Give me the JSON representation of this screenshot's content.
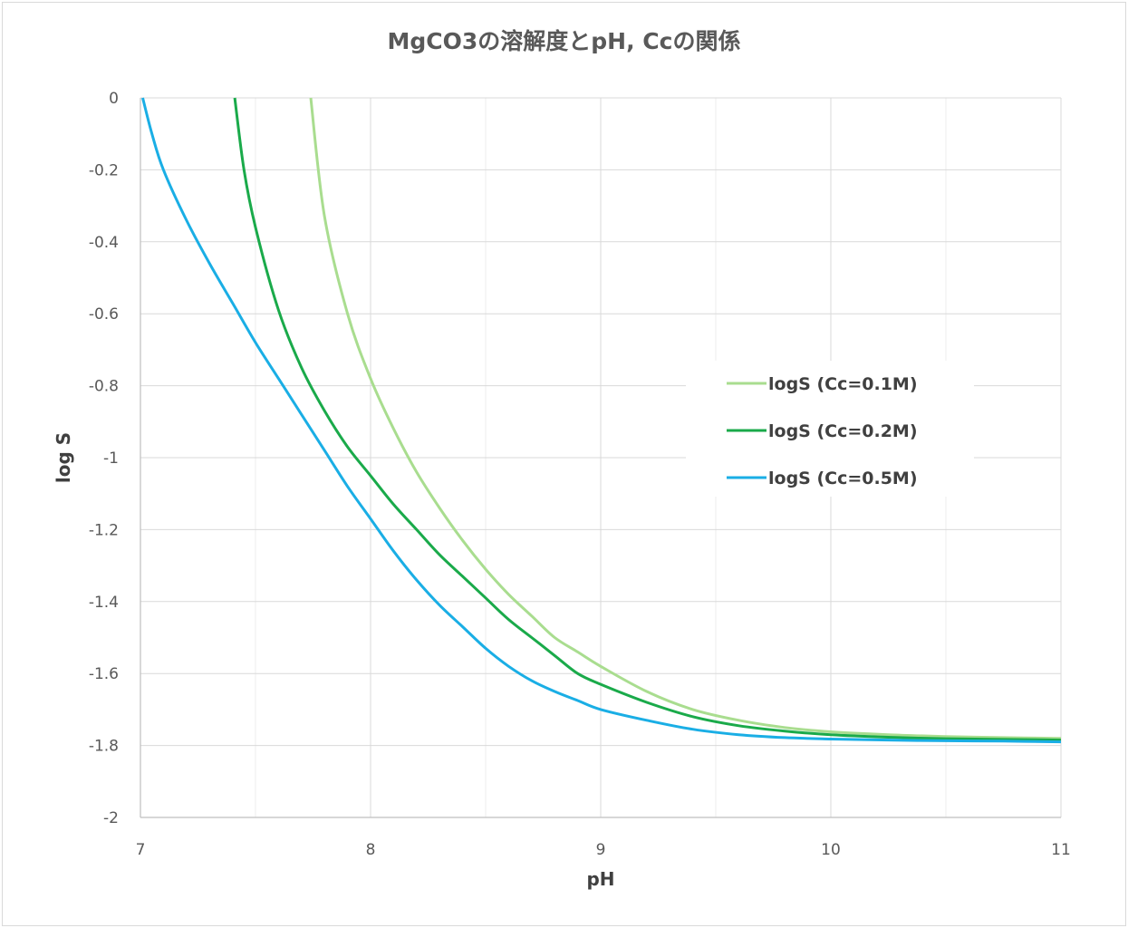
{
  "chart_data": {
    "type": "line",
    "title": "MgCO3の溶解度とpH, Ccの関係",
    "xlabel": "pH",
    "ylabel": "log S",
    "xlim": [
      7,
      11
    ],
    "ylim": [
      -2,
      0
    ],
    "x_ticks": [
      "7",
      "8",
      "9",
      "10",
      "11"
    ],
    "y_ticks": [
      "0",
      "-0.2",
      "-0.4",
      "-0.6",
      "-0.8",
      "-1",
      "-1.2",
      "-1.4",
      "-1.6",
      "-1.8",
      "-2"
    ],
    "grid": true,
    "legend_position": "right",
    "series": [
      {
        "name": "logS (Cc=0.1M)",
        "color": "#a9dd8f",
        "x": [
          7.74,
          7.8,
          7.9,
          8.0,
          8.1,
          8.2,
          8.3,
          8.4,
          8.5,
          8.6,
          8.7,
          8.8,
          8.9,
          9.0,
          9.2,
          9.4,
          9.6,
          9.8,
          10.0,
          10.25,
          10.5,
          10.75,
          11.0
        ],
        "y": [
          0,
          -0.33,
          -0.6,
          -0.78,
          -0.92,
          -1.04,
          -1.14,
          -1.23,
          -1.31,
          -1.38,
          -1.44,
          -1.5,
          -1.54,
          -1.58,
          -1.65,
          -1.7,
          -1.73,
          -1.75,
          -1.762,
          -1.77,
          -1.775,
          -1.778,
          -1.78
        ]
      },
      {
        "name": "logS (Cc=0.2M)",
        "color": "#1aaa4a",
        "x": [
          7.41,
          7.45,
          7.5,
          7.6,
          7.7,
          7.8,
          7.9,
          8.0,
          8.1,
          8.2,
          8.3,
          8.4,
          8.5,
          8.6,
          8.7,
          8.8,
          8.9,
          9.0,
          9.2,
          9.4,
          9.6,
          9.8,
          10.0,
          10.25,
          10.5,
          10.75,
          11.0
        ],
        "y": [
          0,
          -0.2,
          -0.36,
          -0.59,
          -0.75,
          -0.87,
          -0.97,
          -1.05,
          -1.13,
          -1.2,
          -1.27,
          -1.33,
          -1.39,
          -1.45,
          -1.5,
          -1.55,
          -1.6,
          -1.63,
          -1.68,
          -1.72,
          -1.745,
          -1.76,
          -1.77,
          -1.777,
          -1.781,
          -1.783,
          -1.785
        ]
      },
      {
        "name": "logS (Cc=0.5M)",
        "color": "#1aaee5",
        "x": [
          7.01,
          7.05,
          7.1,
          7.2,
          7.3,
          7.4,
          7.5,
          7.6,
          7.7,
          7.8,
          7.9,
          8.0,
          8.1,
          8.2,
          8.3,
          8.4,
          8.5,
          8.6,
          8.7,
          8.8,
          8.9,
          9.0,
          9.2,
          9.4,
          9.6,
          9.8,
          10.0,
          10.25,
          10.5,
          10.75,
          11.0
        ],
        "y": [
          0,
          -0.1,
          -0.2,
          -0.34,
          -0.46,
          -0.57,
          -0.68,
          -0.78,
          -0.88,
          -0.98,
          -1.08,
          -1.17,
          -1.26,
          -1.34,
          -1.41,
          -1.47,
          -1.53,
          -1.58,
          -1.62,
          -1.65,
          -1.675,
          -1.7,
          -1.73,
          -1.755,
          -1.77,
          -1.778,
          -1.782,
          -1.785,
          -1.787,
          -1.788,
          -1.79
        ]
      }
    ]
  }
}
